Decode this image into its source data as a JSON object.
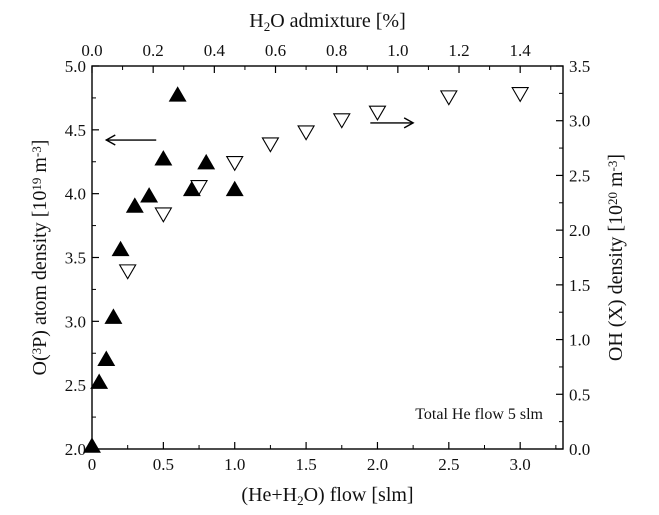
{
  "chart_data": {
    "type": "scatter",
    "annotation": "Total He flow 5 slm",
    "axes": {
      "bottom": {
        "label_parts": [
          "(He+H",
          "2",
          "O) flow [slm]"
        ],
        "range": [
          0,
          3.3
        ],
        "ticks": [
          0,
          0.5,
          1.0,
          1.5,
          2.0,
          2.5,
          3.0
        ],
        "tick_labels": [
          "0",
          "0.5",
          "1.0",
          "1.5",
          "2.0",
          "2.5",
          "3.0"
        ]
      },
      "top": {
        "label_parts": [
          "H",
          "2",
          "O admixture [%]"
        ],
        "range": [
          0,
          1.54
        ],
        "ticks": [
          0,
          0.2,
          0.4,
          0.6,
          0.8,
          1.0,
          1.2,
          1.4
        ],
        "tick_labels": [
          "0.0",
          "0.2",
          "0.4",
          "0.6",
          "0.8",
          "1.0",
          "1.2",
          "1.4"
        ]
      },
      "left": {
        "label_parts": [
          "O(",
          "3",
          "P) atom density [10",
          "19",
          " m",
          "-3",
          "]"
        ],
        "range": [
          2.0,
          5.0
        ],
        "ticks": [
          2.0,
          2.5,
          3.0,
          3.5,
          4.0,
          4.5,
          5.0
        ],
        "tick_labels": [
          "2.0",
          "2.5",
          "3.0",
          "3.5",
          "4.0",
          "4.5",
          "5.0"
        ]
      },
      "right": {
        "label_parts": [
          "OH (X) density [10",
          "20",
          " m",
          "-3",
          "]"
        ],
        "range": [
          0,
          3.5
        ],
        "ticks": [
          0,
          0.5,
          1.0,
          1.5,
          2.0,
          2.5,
          3.0,
          3.5
        ],
        "tick_labels": [
          "0.0",
          "0.5",
          "1.0",
          "1.5",
          "2.0",
          "2.5",
          "3.0",
          "3.5"
        ]
      }
    },
    "series": [
      {
        "marker": "filled-triangle-up",
        "y_axis": "left",
        "color": "#000000",
        "points": [
          [
            0.0,
            2.02
          ],
          [
            0.05,
            2.52
          ],
          [
            0.1,
            2.7
          ],
          [
            0.15,
            3.03
          ],
          [
            0.2,
            3.56
          ],
          [
            0.3,
            3.9
          ],
          [
            0.4,
            3.98
          ],
          [
            0.5,
            4.27
          ],
          [
            0.6,
            4.77
          ],
          [
            0.7,
            4.03
          ],
          [
            0.8,
            4.24
          ],
          [
            1.0,
            4.03
          ]
        ]
      },
      {
        "marker": "open-triangle-down",
        "y_axis": "right",
        "color": "#000000",
        "points": [
          [
            0.25,
            1.63
          ],
          [
            0.5,
            2.15
          ],
          [
            0.75,
            2.4
          ],
          [
            1.0,
            2.62
          ],
          [
            1.25,
            2.79
          ],
          [
            1.5,
            2.9
          ],
          [
            1.75,
            3.01
          ],
          [
            2.0,
            3.08
          ],
          [
            2.5,
            3.22
          ],
          [
            3.0,
            3.25
          ]
        ]
      }
    ],
    "arrows": [
      {
        "direction": "left",
        "points_to": "left",
        "x_from": 0.45,
        "x_to": 0.1,
        "y": 4.42
      },
      {
        "direction": "right",
        "points_to": "right",
        "x_from": 1.95,
        "x_to": 2.25,
        "y": 2.98
      }
    ],
    "grid": false,
    "legend": "none"
  }
}
